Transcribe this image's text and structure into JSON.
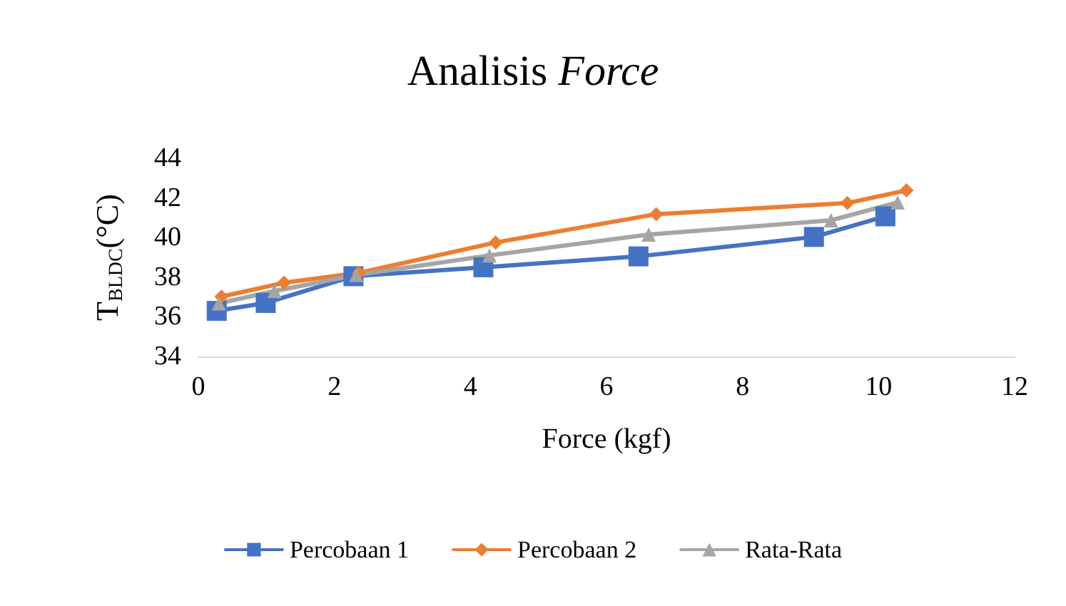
{
  "chart_data": {
    "type": "line",
    "title": "Analisis Force",
    "xlabel": "Force (kgf)",
    "ylabel": "T$_{BLDC}$(°C)",
    "xlim": [
      0,
      12
    ],
    "xticks": [
      0,
      2,
      4,
      6,
      8,
      10,
      12
    ],
    "ylim": [
      34,
      44
    ],
    "yticks": [
      34,
      36,
      38,
      40,
      42,
      44
    ],
    "grid": false,
    "legend": "bottom",
    "series": [
      {
        "name": "Percobaan 1",
        "color": "#4472c4",
        "marker": "square",
        "x": [
          0.27,
          0.99,
          2.28,
          4.19,
          6.47,
          9.05,
          10.1
        ],
        "values": [
          36.3,
          36.7,
          38.05,
          38.5,
          39.05,
          40.03,
          41.07
        ]
      },
      {
        "name": "Percobaan 2",
        "color": "#ed7d31",
        "marker": "diamond",
        "x": [
          0.34,
          1.26,
          2.36,
          4.37,
          6.73,
          9.54,
          10.41
        ],
        "values": [
          37.02,
          37.72,
          38.22,
          39.75,
          41.18,
          41.74,
          42.38
        ]
      },
      {
        "name": "Rata-Rata",
        "color": "#a5a5a5",
        "marker": "triangle",
        "x": [
          0.3,
          1.12,
          2.32,
          4.28,
          6.62,
          9.3,
          10.28
        ],
        "values": [
          36.68,
          37.3,
          38.11,
          39.1,
          40.15,
          40.87,
          41.77
        ]
      }
    ]
  }
}
